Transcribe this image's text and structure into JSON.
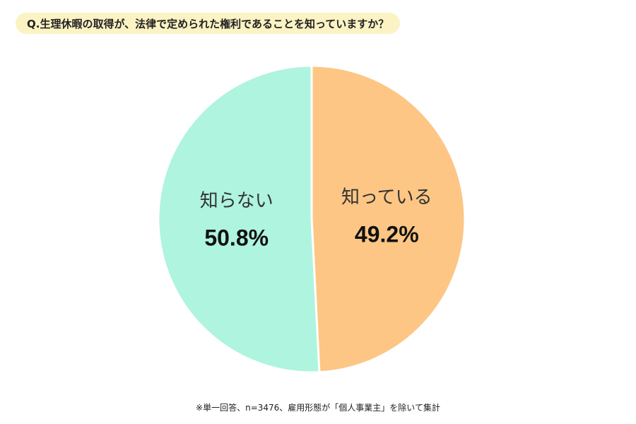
{
  "question": "Q.生理休暇の取得が、法律で定められた権利であることを知っていますか？",
  "footnote": "※単一回答、n=3476、雇用形態が「個人事業主」を除いて集計",
  "chart_data": {
    "type": "pie",
    "slices": [
      {
        "label": "知っている",
        "value": 49.2,
        "display": "49.2%",
        "color": "#fdc685"
      },
      {
        "label": "知らない",
        "value": 50.8,
        "display": "50.8%",
        "color": "#aef4df"
      }
    ],
    "start": "12 o'clock",
    "direction": "clockwise",
    "separator_color": "#ffffff"
  }
}
